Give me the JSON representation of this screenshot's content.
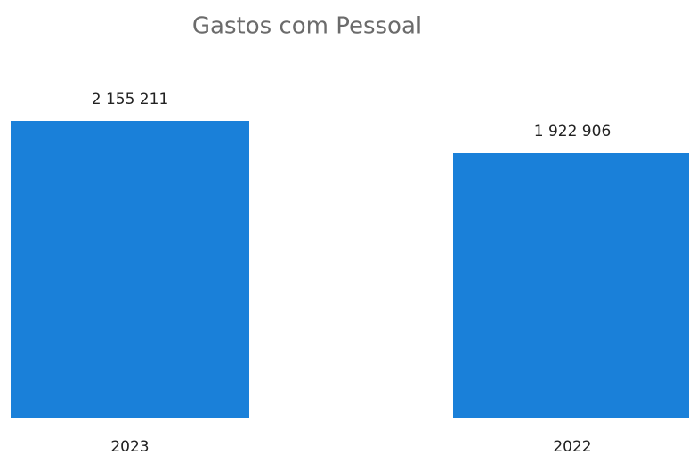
{
  "chart_data": {
    "type": "bar",
    "title": "Gastos com Pessoal",
    "categories": [
      "2023",
      "2022"
    ],
    "values": [
      2155211,
      1922906
    ],
    "value_labels": [
      "2 155 211",
      "1 922 906"
    ],
    "color": "#1a80d9"
  }
}
